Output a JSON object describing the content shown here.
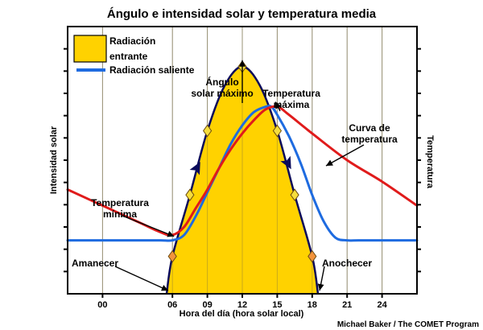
{
  "chart_data": {
    "type": "line",
    "title": "Ángulo e intensidad solar y temperatura media",
    "xlabel": "Hora del día (hora solar local)",
    "ylabel_left": "Intensidad solar",
    "ylabel_right": "Temperatura",
    "xlim": [
      -3,
      27
    ],
    "ylim": [
      0,
      1
    ],
    "x_ticks": [
      {
        "value": 0,
        "label": "00"
      },
      {
        "value": 6,
        "label": "06"
      },
      {
        "value": 9,
        "label": "09"
      },
      {
        "value": 12,
        "label": "12"
      },
      {
        "value": 15,
        "label": "15"
      },
      {
        "value": 18,
        "label": "18"
      },
      {
        "value": 21,
        "label": "21"
      },
      {
        "value": 24,
        "label": "24"
      }
    ],
    "grid": true,
    "legend_position": "top-left",
    "legend": [
      {
        "label_line1": "Radiación",
        "label_line2": "entrante"
      },
      {
        "label": "Radiación saliente"
      }
    ],
    "series": [
      {
        "name": "Radiación entrante",
        "kind": "area",
        "color": "#ffd200",
        "outline_color": "#0a0a5a",
        "x": [
          5.5,
          6,
          7.5,
          9,
          10.5,
          12,
          13.5,
          15,
          16.5,
          18,
          18.5
        ],
        "y": [
          0,
          0.14,
          0.37,
          0.61,
          0.78,
          0.85,
          0.78,
          0.61,
          0.37,
          0.14,
          0
        ]
      },
      {
        "name": "Radiación saliente",
        "kind": "line",
        "color": "#1e6be0",
        "x": [
          -3,
          0,
          3,
          5,
          6,
          7,
          8,
          9,
          10,
          11,
          12,
          13,
          14,
          14.5,
          15,
          16,
          17,
          18,
          19,
          20,
          21,
          22,
          24,
          27
        ],
        "y": [
          0.2,
          0.2,
          0.2,
          0.2,
          0.2,
          0.22,
          0.29,
          0.38,
          0.47,
          0.56,
          0.63,
          0.68,
          0.7,
          0.7,
          0.67,
          0.59,
          0.49,
          0.37,
          0.27,
          0.21,
          0.2,
          0.2,
          0.2,
          0.2
        ]
      },
      {
        "name": "Curva de temperatura",
        "kind": "line",
        "color": "#e01b1b",
        "x": [
          -3,
          0,
          3,
          5,
          6,
          7,
          8,
          9,
          10,
          11,
          12,
          13,
          14,
          15,
          16,
          18,
          21,
          24,
          27
        ],
        "y": [
          0.39,
          0.33,
          0.27,
          0.23,
          0.22,
          0.25,
          0.32,
          0.39,
          0.47,
          0.54,
          0.6,
          0.65,
          0.69,
          0.7,
          0.67,
          0.6,
          0.5,
          0.42,
          0.33
        ]
      }
    ],
    "markers": {
      "color_sun_high": "#f6dd3c",
      "color_sun_low": "#f2933c",
      "points": [
        {
          "x": 6,
          "y": 0.14,
          "tone": "low"
        },
        {
          "x": 7.5,
          "y": 0.37,
          "tone": "high"
        },
        {
          "x": 9,
          "y": 0.61,
          "tone": "high"
        },
        {
          "x": 12,
          "y": 0.85,
          "tone": "high"
        },
        {
          "x": 15,
          "y": 0.61,
          "tone": "high"
        },
        {
          "x": 16.5,
          "y": 0.37,
          "tone": "high"
        },
        {
          "x": 18,
          "y": 0.14,
          "tone": "low"
        }
      ]
    },
    "annotations": [
      {
        "id": "angulo",
        "line1": "Ángulo",
        "line2": "solar máximo"
      },
      {
        "id": "tmax",
        "line1": "Temperatura",
        "line2": "máxima"
      },
      {
        "id": "curva",
        "line1": "Curva de",
        "line2": "temperatura"
      },
      {
        "id": "tmin",
        "line1": "Temperatura",
        "line2": "mínima"
      },
      {
        "id": "amanecer",
        "line1": "Amanecer"
      },
      {
        "id": "anochecer",
        "line1": "Anochecer"
      }
    ],
    "credit": "Michael Baker / The COMET Program"
  }
}
